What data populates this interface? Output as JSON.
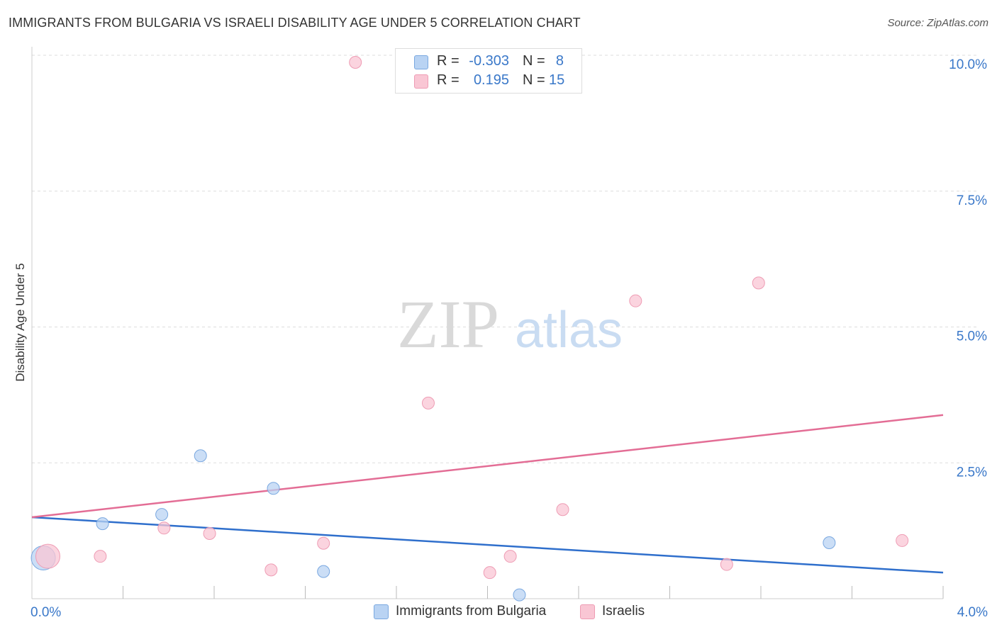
{
  "title": "IMMIGRANTS FROM BULGARIA VS ISRAELI DISABILITY AGE UNDER 5 CORRELATION CHART",
  "source": "Source: ZipAtlas.com",
  "watermark": {
    "zip": "ZIP",
    "atlas": "atlas"
  },
  "colors": {
    "blue_fill": "#b9d3f3",
    "blue_stroke": "#7aa8e0",
    "blue_line": "#2f6fcc",
    "pink_fill": "#f9c6d4",
    "pink_stroke": "#ee9cb4",
    "pink_line": "#e36d95",
    "axis_text": "#3a78c9",
    "grid": "#dddddd"
  },
  "legend": {
    "r_label": "R =",
    "n_label": "N =",
    "rows": [
      {
        "series": "blue",
        "r": "-0.303",
        "n": "8"
      },
      {
        "series": "pink",
        "r": "0.195",
        "n": "15"
      }
    ]
  },
  "chart_data": {
    "type": "scatter",
    "title": "IMMIGRANTS FROM BULGARIA VS ISRAELI DISABILITY AGE UNDER 5 CORRELATION CHART",
    "xlabel": "",
    "ylabel": "Disability Age Under 5",
    "xlim": [
      0,
      4.0
    ],
    "ylim": [
      0,
      10.0
    ],
    "x_tick_labels": [
      "0.0%",
      "4.0%"
    ],
    "y_ticks": [
      2.5,
      5.0,
      7.5,
      10.0
    ],
    "y_tick_labels": [
      "2.5%",
      "5.0%",
      "7.5%",
      "10.0%"
    ],
    "grid": true,
    "series": [
      {
        "name": "Immigrants from Bulgaria",
        "color": "blue",
        "points": [
          {
            "x": 0.05,
            "y": 0.75,
            "size": "large"
          },
          {
            "x": 0.31,
            "y": 1.38
          },
          {
            "x": 0.57,
            "y": 1.55
          },
          {
            "x": 0.74,
            "y": 2.63
          },
          {
            "x": 1.06,
            "y": 2.03
          },
          {
            "x": 1.28,
            "y": 0.5
          },
          {
            "x": 2.14,
            "y": 0.07
          },
          {
            "x": 3.5,
            "y": 1.03
          }
        ],
        "trend": {
          "x": [
            0.0,
            4.0
          ],
          "y": [
            1.5,
            0.48
          ]
        }
      },
      {
        "name": "Israelis",
        "color": "pink",
        "points": [
          {
            "x": 0.07,
            "y": 0.78,
            "size": "large"
          },
          {
            "x": 0.3,
            "y": 0.78
          },
          {
            "x": 0.58,
            "y": 1.3
          },
          {
            "x": 0.78,
            "y": 1.2
          },
          {
            "x": 1.05,
            "y": 0.53
          },
          {
            "x": 1.28,
            "y": 1.02
          },
          {
            "x": 1.42,
            "y": 9.87
          },
          {
            "x": 1.74,
            "y": 3.6
          },
          {
            "x": 2.01,
            "y": 0.48
          },
          {
            "x": 2.1,
            "y": 0.78
          },
          {
            "x": 2.33,
            "y": 1.64
          },
          {
            "x": 2.65,
            "y": 5.48
          },
          {
            "x": 3.19,
            "y": 5.81
          },
          {
            "x": 3.05,
            "y": 0.63
          },
          {
            "x": 3.82,
            "y": 1.07
          }
        ],
        "trend": {
          "x": [
            0.0,
            4.0
          ],
          "y": [
            1.5,
            3.38
          ]
        }
      }
    ]
  }
}
